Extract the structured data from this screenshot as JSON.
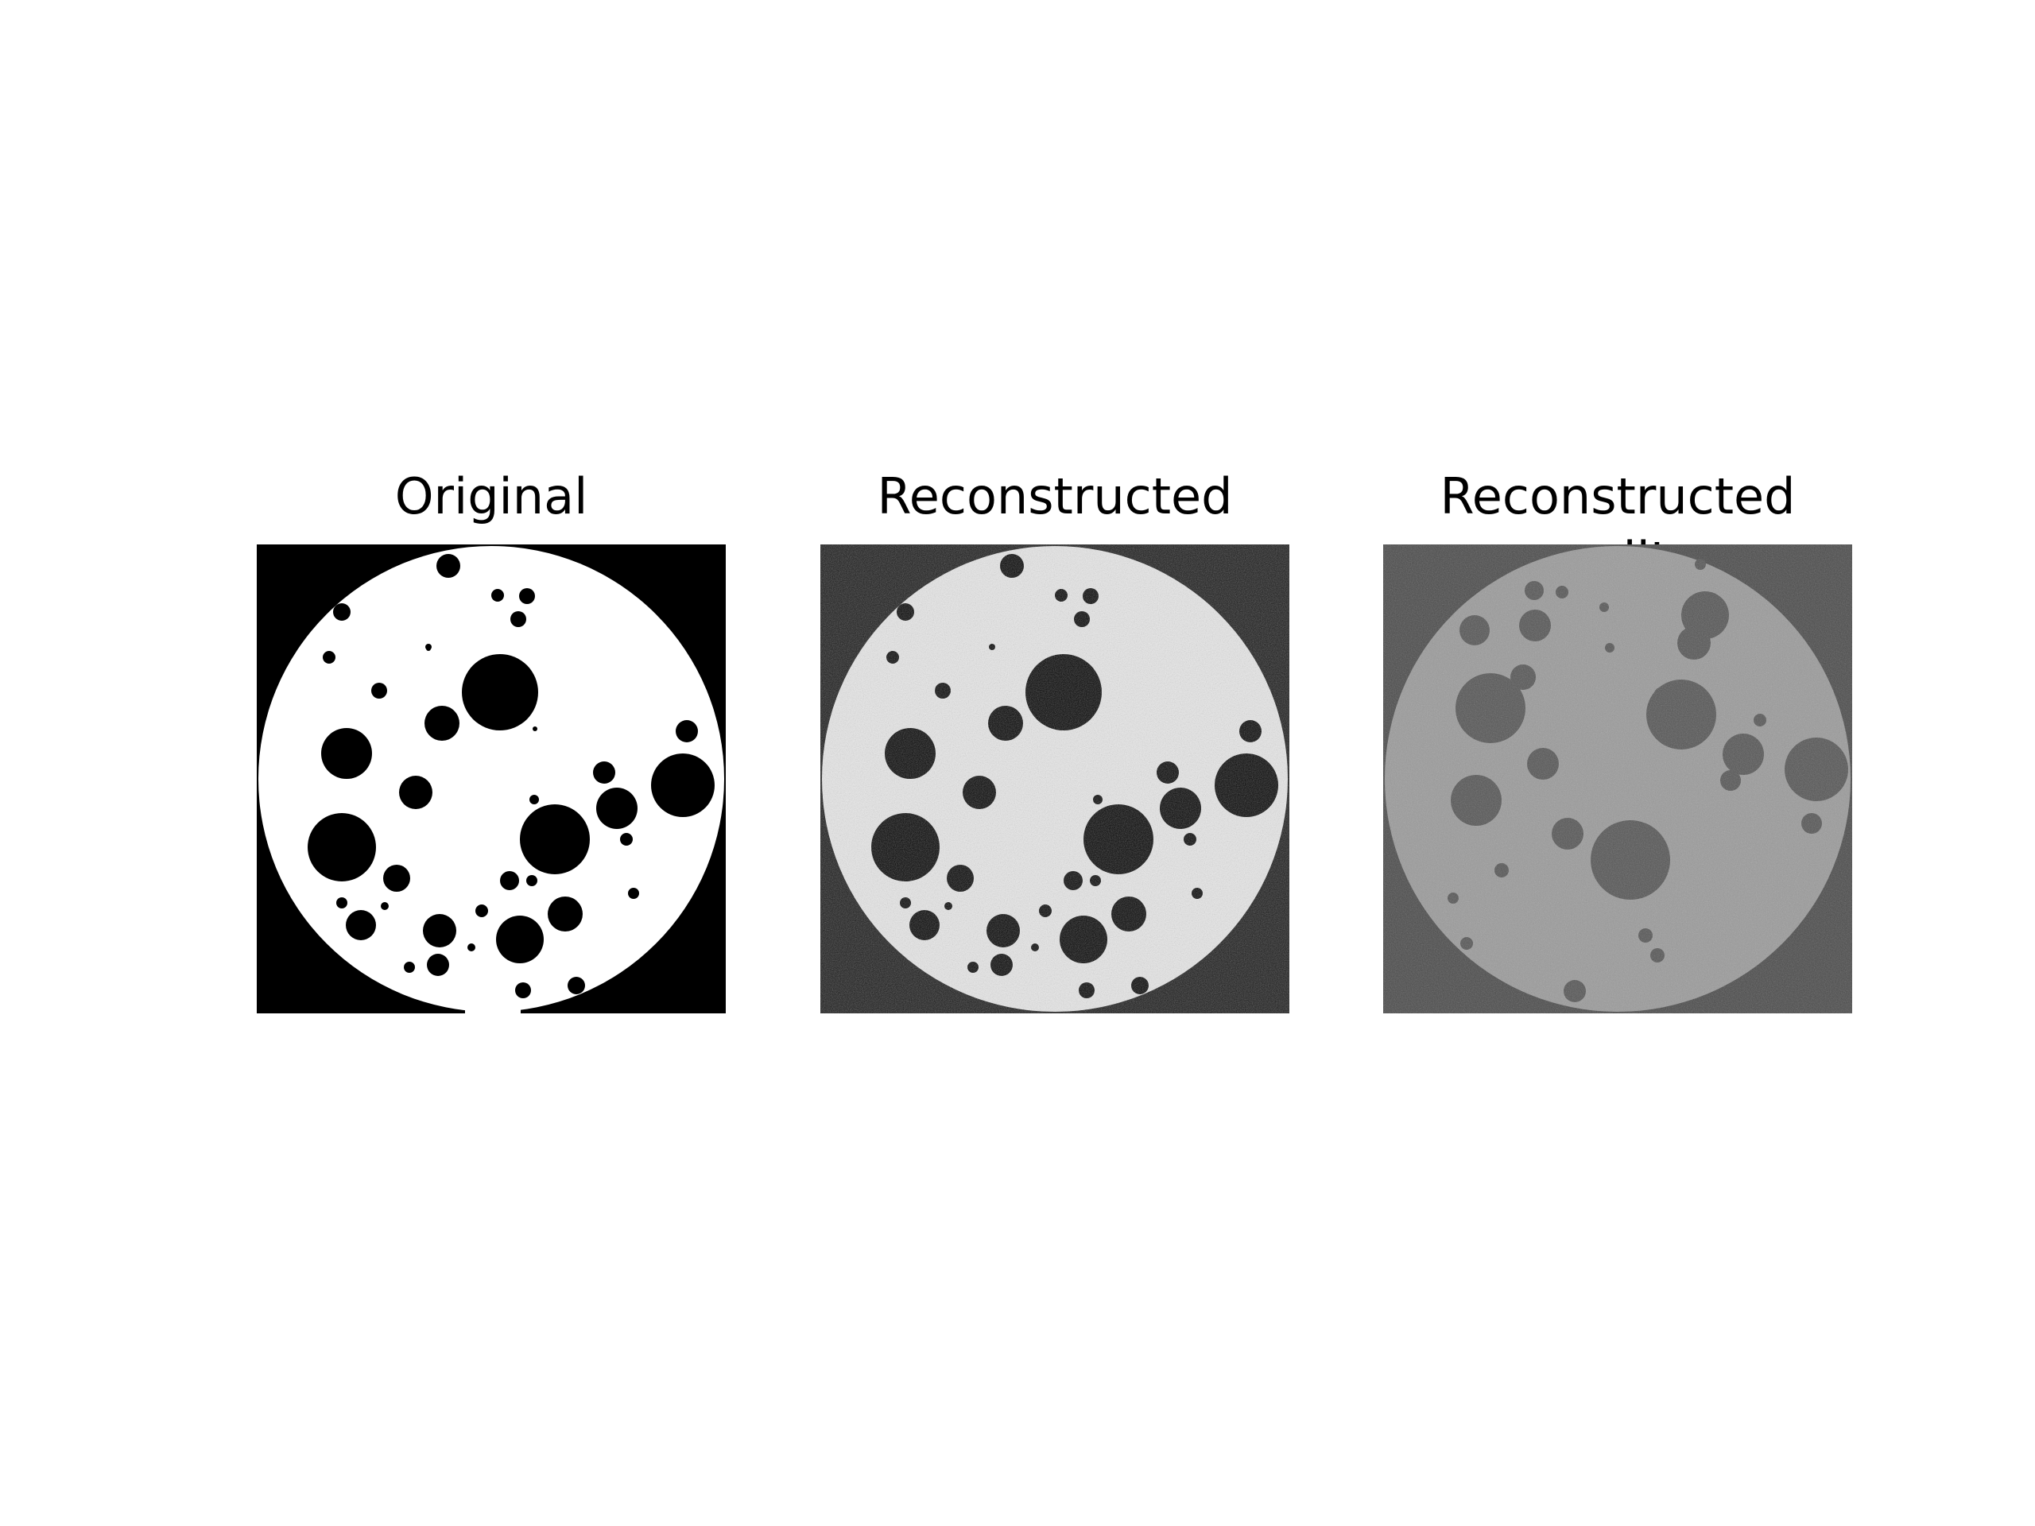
{
  "figure": {
    "panels": [
      {
        "title": "Original",
        "background": "#000000",
        "disk": "#ffffff",
        "holes": "#000000"
      },
      {
        "title": "Reconstructed",
        "background": "#1a1a1a",
        "disk": "#e8e8e8",
        "holes": "#050505"
      },
      {
        "title": "Reconstructed split",
        "background": "#4a4a4a",
        "disk": "#9a9a9a",
        "holes": "#555555"
      }
    ]
  }
}
